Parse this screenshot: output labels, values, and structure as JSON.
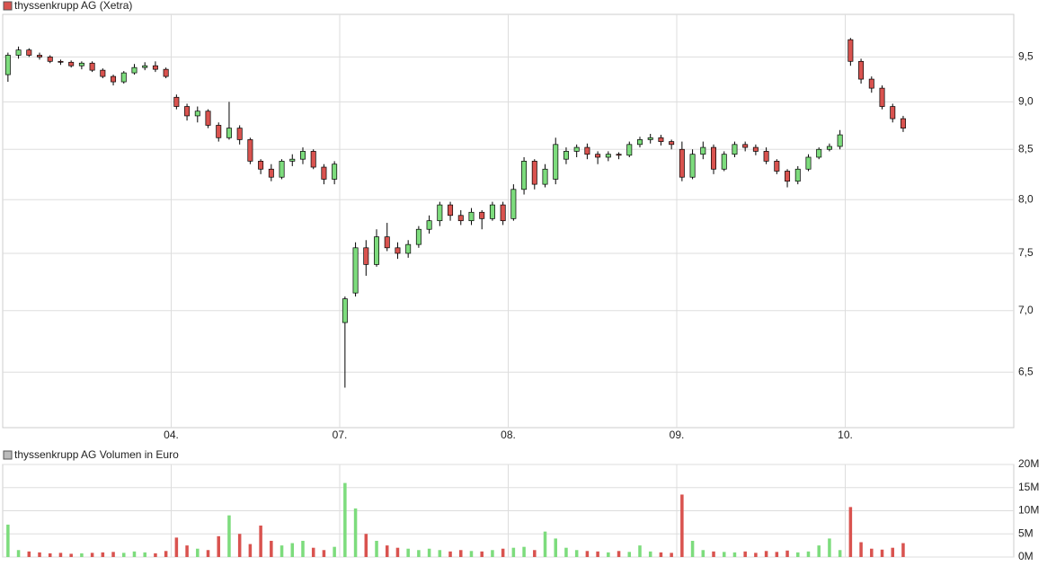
{
  "chart_data": [
    {
      "type": "candlestick",
      "title": "thyssenkrupp AG (Xetra)",
      "legend_color": "#d9534f",
      "up_color": "#7ddc7d",
      "down_color": "#d9534f",
      "log_scale": true,
      "grid": true,
      "xlim": [
        -0.5,
        95.5
      ],
      "xticks": [
        {
          "value": 15.5,
          "label": "04."
        },
        {
          "value": 31.5,
          "label": "07."
        },
        {
          "value": 47.5,
          "label": "08."
        },
        {
          "value": 63.5,
          "label": "09."
        },
        {
          "value": 79.5,
          "label": "10."
        }
      ],
      "ylim": [
        6.08,
        10.0
      ],
      "yticks": [
        {
          "value": 6.5,
          "label": "6,5"
        },
        {
          "value": 7.0,
          "label": "7,0"
        },
        {
          "value": 7.5,
          "label": "7,5"
        },
        {
          "value": 8.0,
          "label": "8,0"
        },
        {
          "value": 8.5,
          "label": "8,5"
        },
        {
          "value": 9.0,
          "label": "9,0"
        },
        {
          "value": 9.5,
          "label": "9,5"
        }
      ],
      "open": [
        9.3,
        9.52,
        9.58,
        9.52,
        9.5,
        9.45,
        9.44,
        9.4,
        9.43,
        9.35,
        9.28,
        9.22,
        9.32,
        9.38,
        9.4,
        9.36,
        9.05,
        8.95,
        8.85,
        8.9,
        8.75,
        8.62,
        8.72,
        8.6,
        8.38,
        8.3,
        8.22,
        8.38,
        8.4,
        8.48,
        8.32,
        8.2,
        6.9,
        7.15,
        7.55,
        7.4,
        7.65,
        7.55,
        7.5,
        7.58,
        7.72,
        7.8,
        7.95,
        7.85,
        7.8,
        7.88,
        7.82,
        7.95,
        7.82,
        8.1,
        8.38,
        8.15,
        8.2,
        8.4,
        8.48,
        8.52,
        8.45,
        8.42,
        8.45,
        8.44,
        8.55,
        8.6,
        8.62,
        8.58,
        8.5,
        8.22,
        8.45,
        8.52,
        8.3,
        8.45,
        8.55,
        8.52,
        8.48,
        8.38,
        8.28,
        8.18,
        8.3,
        8.42,
        8.5,
        8.53,
        9.7,
        9.45,
        9.25,
        9.15,
        8.95,
        8.82
      ],
      "high": [
        9.55,
        9.62,
        9.6,
        9.55,
        9.52,
        9.47,
        9.46,
        9.45,
        9.45,
        9.37,
        9.3,
        9.34,
        9.42,
        9.44,
        9.45,
        9.38,
        9.08,
        8.98,
        8.95,
        8.92,
        8.78,
        9.0,
        8.75,
        8.62,
        8.4,
        8.35,
        8.4,
        8.45,
        8.52,
        8.5,
        8.35,
        8.38,
        7.12,
        7.6,
        7.62,
        7.72,
        7.78,
        7.6,
        7.62,
        7.75,
        7.85,
        7.98,
        7.98,
        7.9,
        7.92,
        7.9,
        7.98,
        7.98,
        8.15,
        8.42,
        8.4,
        8.35,
        8.62,
        8.52,
        8.55,
        8.56,
        8.48,
        8.48,
        8.47,
        8.58,
        8.63,
        8.66,
        8.65,
        8.6,
        8.58,
        8.5,
        8.58,
        8.55,
        8.48,
        8.58,
        8.58,
        8.55,
        8.52,
        8.4,
        8.3,
        8.33,
        8.45,
        8.52,
        8.56,
        8.7,
        9.72,
        9.48,
        9.28,
        9.18,
        8.98,
        8.85
      ],
      "low": [
        9.22,
        9.48,
        9.5,
        9.47,
        9.43,
        9.41,
        9.38,
        9.36,
        9.33,
        9.26,
        9.18,
        9.2,
        9.3,
        9.35,
        9.33,
        9.26,
        8.92,
        8.8,
        8.78,
        8.72,
        8.58,
        8.6,
        8.55,
        8.35,
        8.25,
        8.18,
        8.2,
        8.33,
        8.35,
        8.3,
        8.15,
        8.15,
        6.38,
        7.12,
        7.3,
        7.38,
        7.52,
        7.45,
        7.46,
        7.55,
        7.68,
        7.75,
        7.8,
        7.76,
        7.76,
        7.72,
        7.8,
        7.76,
        7.8,
        8.05,
        8.1,
        8.12,
        8.15,
        8.35,
        8.42,
        8.4,
        8.35,
        8.38,
        8.4,
        8.42,
        8.52,
        8.56,
        8.54,
        8.5,
        8.18,
        8.2,
        8.4,
        8.25,
        8.28,
        8.42,
        8.48,
        8.44,
        8.35,
        8.25,
        8.12,
        8.15,
        8.28,
        8.4,
        8.48,
        8.5,
        9.4,
        9.2,
        9.1,
        8.92,
        8.78,
        8.68
      ],
      "close": [
        9.52,
        9.58,
        9.52,
        9.5,
        9.45,
        9.44,
        9.4,
        9.43,
        9.35,
        9.28,
        9.22,
        9.32,
        9.38,
        9.4,
        9.36,
        9.28,
        8.95,
        8.85,
        8.9,
        8.75,
        8.62,
        8.72,
        8.6,
        8.38,
        8.3,
        8.22,
        8.38,
        8.4,
        8.48,
        8.32,
        8.2,
        8.35,
        7.1,
        7.55,
        7.4,
        7.65,
        7.55,
        7.5,
        7.58,
        7.72,
        7.8,
        7.95,
        7.85,
        7.8,
        7.88,
        7.82,
        7.95,
        7.8,
        8.1,
        8.38,
        8.15,
        8.3,
        8.55,
        8.48,
        8.52,
        8.45,
        8.42,
        8.45,
        8.44,
        8.55,
        8.6,
        8.62,
        8.58,
        8.55,
        8.22,
        8.45,
        8.52,
        8.3,
        8.45,
        8.55,
        8.52,
        8.48,
        8.38,
        8.28,
        8.18,
        8.3,
        8.42,
        8.5,
        8.53,
        8.65,
        9.45,
        9.25,
        9.15,
        8.95,
        8.82,
        8.72
      ]
    },
    {
      "type": "bar",
      "title": "thyssenkrupp AG Volumen in Euro",
      "legend_color": "#bbbbbb",
      "up_color": "#7ddc7d",
      "down_color": "#d9534f",
      "grid": true,
      "ylim": [
        0,
        20000000
      ],
      "yticks": [
        {
          "value": 0,
          "label": "0M"
        },
        {
          "value": 5000000,
          "label": "5M"
        },
        {
          "value": 10000000,
          "label": "10M"
        },
        {
          "value": 15000000,
          "label": "15M"
        },
        {
          "value": 20000000,
          "label": "20M"
        }
      ],
      "values": [
        7000000,
        1500000,
        1200000,
        1000000,
        800000,
        900000,
        700000,
        800000,
        900000,
        1000000,
        1100000,
        900000,
        1200000,
        1000000,
        800000,
        1300000,
        4200000,
        2500000,
        1800000,
        1500000,
        4500000,
        9000000,
        5000000,
        2800000,
        6800000,
        3500000,
        2500000,
        3000000,
        3500000,
        2000000,
        1500000,
        2200000,
        16000000,
        10500000,
        5000000,
        3500000,
        2500000,
        2000000,
        1800000,
        1500000,
        1800000,
        1500000,
        1200000,
        1500000,
        1300000,
        1200000,
        1500000,
        1800000,
        2000000,
        2200000,
        1500000,
        5500000,
        4000000,
        2000000,
        1500000,
        1300000,
        1200000,
        1000000,
        1300000,
        1100000,
        2500000,
        1200000,
        1000000,
        900000,
        13500000,
        3500000,
        1500000,
        1200000,
        1100000,
        1000000,
        1200000,
        900000,
        1300000,
        1100000,
        1400000,
        1000000,
        1200000,
        2500000,
        4000000,
        1500000,
        10800000,
        3200000,
        1800000,
        1600000,
        2000000,
        3000000
      ]
    }
  ]
}
